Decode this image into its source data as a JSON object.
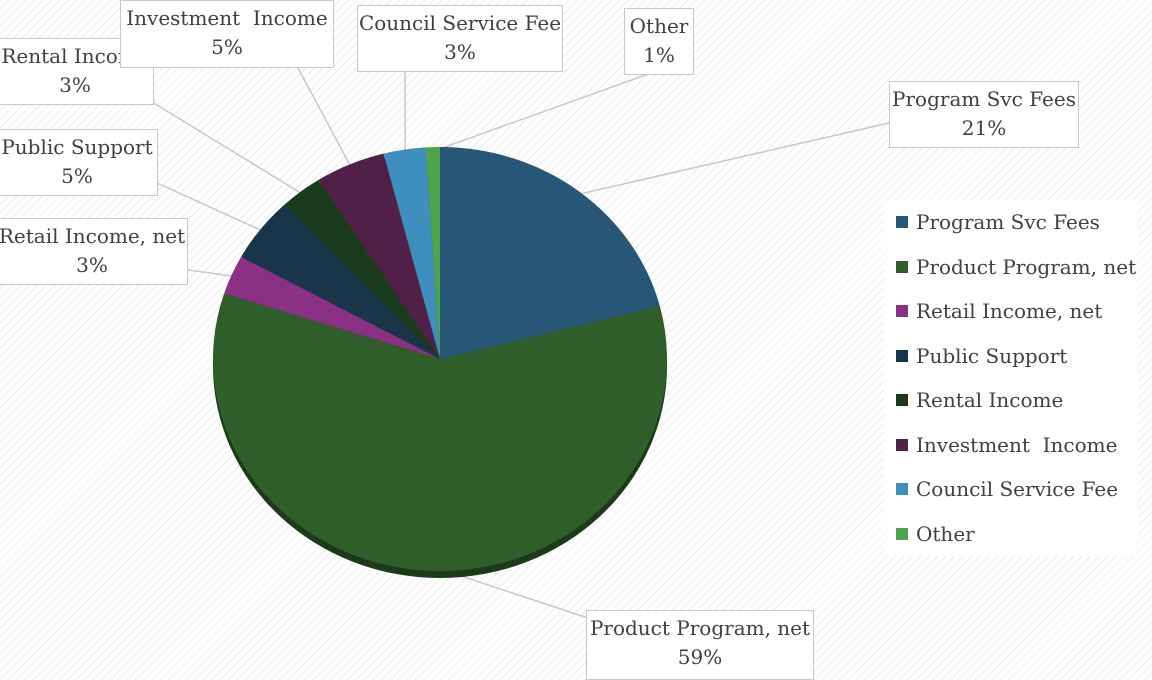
{
  "chart_data": {
    "type": "pie",
    "title": "",
    "categories": [
      "Program Svc Fees",
      "Product Program, net",
      "Retail Income, net",
      "Public Support",
      "Rental Income",
      "Investment  Income",
      "Council Service Fee",
      "Other"
    ],
    "values": [
      21,
      59,
      3,
      5,
      3,
      5,
      3,
      1
    ],
    "labels": [
      "21%",
      "59%",
      "3%",
      "5%",
      "3%",
      "5%",
      "3%",
      "1%"
    ],
    "colors": [
      "#275677",
      "#2f5e2b",
      "#8a3185",
      "#193549",
      "#1a3b1a",
      "#512049",
      "#3f8fbe",
      "#4ca54a"
    ],
    "legend_position": "right"
  }
}
